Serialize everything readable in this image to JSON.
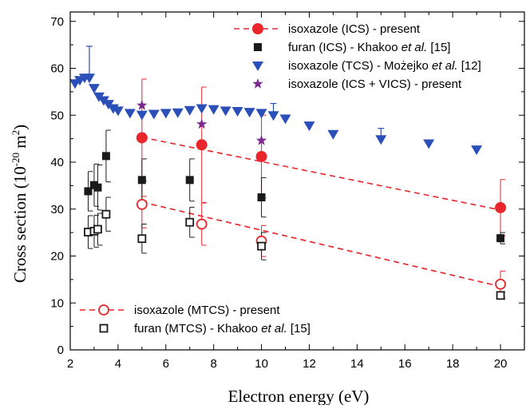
{
  "chart_data": {
    "type": "scatter",
    "title": "",
    "xlabel": "Electron energy (eV)",
    "ylabel": "Cross section (10^-20 m^2)",
    "ylabel_parts": {
      "main": "Cross section (10",
      "exp": "-20",
      "mid": " m",
      "sup2": "2",
      "close": ")"
    },
    "xlim": [
      2,
      21
    ],
    "ylim": [
      0,
      72
    ],
    "xticks": [
      2,
      4,
      6,
      8,
      10,
      12,
      14,
      16,
      18,
      20
    ],
    "yticks": [
      0,
      10,
      20,
      30,
      40,
      50,
      60,
      70
    ],
    "grid": false,
    "legend_top": [
      {
        "key": "ics",
        "text": "isoxazole (ICS) - present"
      },
      {
        "key": "furan_ics",
        "text": "furan (ICS) - Khakoo ",
        "italic": "et al.",
        "tail": " [15]"
      },
      {
        "key": "tcs",
        "text": "isoxazole (TCS) - Możejko ",
        "italic": "et al.",
        "tail": " [12]"
      },
      {
        "key": "vics",
        "text": "isoxazole (ICS + VICS) - present"
      }
    ],
    "legend_bottom": [
      {
        "key": "mtcs",
        "text": "isoxazole (MTCS) - present"
      },
      {
        "key": "furan_mtcs",
        "text": "furan (MTCS) - Khakoo ",
        "italic": "et al.",
        "tail": " [15]"
      }
    ],
    "series": [
      {
        "key": "ics",
        "name": "isoxazole (ICS) - present",
        "color": "#e8262b",
        "marker": "circle-filled",
        "points": [
          {
            "x": 5,
            "y": 45.2,
            "err": 12.5
          },
          {
            "x": 7.5,
            "y": 43.7,
            "err": 12.3
          },
          {
            "x": 10,
            "y": 41.2,
            "err": 8.8
          },
          {
            "x": 20,
            "y": 30.3,
            "err": 6.0
          }
        ],
        "fit": [
          [
            5,
            45.3
          ],
          [
            20,
            29.8
          ]
        ]
      },
      {
        "key": "mtcs",
        "name": "isoxazole (MTCS) - present",
        "color": "#e8262b",
        "marker": "circle-open",
        "points": [
          {
            "x": 5,
            "y": 31.0,
            "err": 5.0
          },
          {
            "x": 7.5,
            "y": 26.8,
            "err": 4.5
          },
          {
            "x": 10,
            "y": 23.2,
            "err": 3.3
          },
          {
            "x": 20,
            "y": 14.0,
            "err": 2.8
          }
        ],
        "fit": [
          [
            5,
            31.5
          ],
          [
            20,
            13.5
          ]
        ]
      },
      {
        "key": "furan_ics",
        "name": "furan (ICS) - Khakoo et al. [15]",
        "color": "#1a1a1a",
        "marker": "square-filled",
        "points": [
          {
            "x": 2.75,
            "y": 33.8,
            "err": 4.2
          },
          {
            "x": 3.0,
            "y": 35.1,
            "err": 4.5
          },
          {
            "x": 3.15,
            "y": 34.6,
            "err": 4.8
          },
          {
            "x": 3.5,
            "y": 41.3,
            "err": 5.5
          },
          {
            "x": 5,
            "y": 36.2,
            "err": 4.5
          },
          {
            "x": 7,
            "y": 36.2,
            "err": 4.5
          },
          {
            "x": 10,
            "y": 32.5,
            "err": 4.2
          },
          {
            "x": 20,
            "y": 23.8,
            "err": 1.2
          }
        ]
      },
      {
        "key": "furan_mtcs",
        "name": "furan (MTCS) - Khakoo et al. [15]",
        "color": "#1a1a1a",
        "marker": "square-open",
        "points": [
          {
            "x": 2.75,
            "y": 25.1,
            "err": 3.5
          },
          {
            "x": 3.0,
            "y": 25.3,
            "err": 3.4
          },
          {
            "x": 3.15,
            "y": 25.7,
            "err": 3.4
          },
          {
            "x": 3.5,
            "y": 28.9,
            "err": 3.6
          },
          {
            "x": 5,
            "y": 23.7,
            "err": 3.1
          },
          {
            "x": 7,
            "y": 27.2,
            "err": 3.2
          },
          {
            "x": 10,
            "y": 22.1,
            "err": 2.9
          },
          {
            "x": 20,
            "y": 11.6,
            "err": 0.8
          }
        ]
      },
      {
        "key": "tcs",
        "name": "isoxazole (TCS) - Możejko et al. [12]",
        "color": "#2b4fb8",
        "marker": "triangle-down",
        "points": [
          {
            "x": 2.2,
            "y": 56.8
          },
          {
            "x": 2.4,
            "y": 57.5
          },
          {
            "x": 2.6,
            "y": 58.0
          },
          {
            "x": 2.8,
            "y": 58.0,
            "err": 6.7
          },
          {
            "x": 3.0,
            "y": 55.8
          },
          {
            "x": 3.2,
            "y": 54.0
          },
          {
            "x": 3.4,
            "y": 53.2
          },
          {
            "x": 3.6,
            "y": 52.4
          },
          {
            "x": 3.8,
            "y": 51.5
          },
          {
            "x": 4.0,
            "y": 51.0
          },
          {
            "x": 4.5,
            "y": 50.5
          },
          {
            "x": 5.0,
            "y": 50.1
          },
          {
            "x": 5.5,
            "y": 50.3
          },
          {
            "x": 6.0,
            "y": 50.5
          },
          {
            "x": 6.5,
            "y": 50.6
          },
          {
            "x": 7.0,
            "y": 51.1
          },
          {
            "x": 7.5,
            "y": 51.5
          },
          {
            "x": 8.0,
            "y": 51.3
          },
          {
            "x": 8.5,
            "y": 51.0
          },
          {
            "x": 9.0,
            "y": 50.9
          },
          {
            "x": 9.5,
            "y": 50.7
          },
          {
            "x": 10.0,
            "y": 50.5
          },
          {
            "x": 10.5,
            "y": 50.0,
            "err": 2.5
          },
          {
            "x": 11.0,
            "y": 49.3
          },
          {
            "x": 12.0,
            "y": 47.8
          },
          {
            "x": 13.0,
            "y": 46.0
          },
          {
            "x": 15.0,
            "y": 44.9,
            "err": 2.3
          },
          {
            "x": 17.0,
            "y": 44.0
          },
          {
            "x": 19.0,
            "y": 42.7
          }
        ]
      },
      {
        "key": "vics",
        "name": "isoxazole (ICS + VICS) - present",
        "color": "#7b2b8f",
        "marker": "star",
        "points": [
          {
            "x": 5,
            "y": 52.1
          },
          {
            "x": 7.5,
            "y": 48.1
          },
          {
            "x": 10,
            "y": 44.6
          }
        ]
      }
    ]
  }
}
